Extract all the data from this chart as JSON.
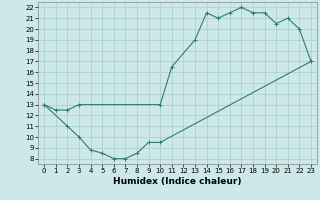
{
  "title": "",
  "xlabel": "Humidex (Indice chaleur)",
  "ylabel": "",
  "bg_color": "#cce8e8",
  "line_color": "#2d7d6e",
  "grid_color": "#aacccc",
  "upper_curve": {
    "x": [
      0,
      1,
      2,
      3,
      10,
      11,
      13,
      14,
      15,
      16,
      17,
      18,
      19,
      20,
      21,
      22,
      23
    ],
    "y": [
      13,
      12.5,
      12.5,
      13,
      13,
      16.5,
      19,
      21.5,
      21,
      21.5,
      22,
      21.5,
      21.5,
      20.5,
      21,
      20,
      17
    ]
  },
  "lower_curve": {
    "x": [
      0,
      2,
      3,
      4,
      5,
      6,
      7,
      8,
      9,
      10,
      23
    ],
    "y": [
      13,
      11,
      10,
      8.8,
      8.5,
      8,
      8,
      8.5,
      9.5,
      9.5,
      17
    ]
  },
  "xlim": [
    -0.5,
    23.5
  ],
  "ylim": [
    7.5,
    22.5
  ],
  "xticks": [
    0,
    1,
    2,
    3,
    4,
    5,
    6,
    7,
    8,
    9,
    10,
    11,
    12,
    13,
    14,
    15,
    16,
    17,
    18,
    19,
    20,
    21,
    22,
    23
  ],
  "yticks": [
    8,
    9,
    10,
    11,
    12,
    13,
    14,
    15,
    16,
    17,
    18,
    19,
    20,
    21,
    22
  ],
  "tick_fontsize": 5.0,
  "xlabel_fontsize": 6.5,
  "linewidth": 0.8,
  "markersize": 3.0
}
